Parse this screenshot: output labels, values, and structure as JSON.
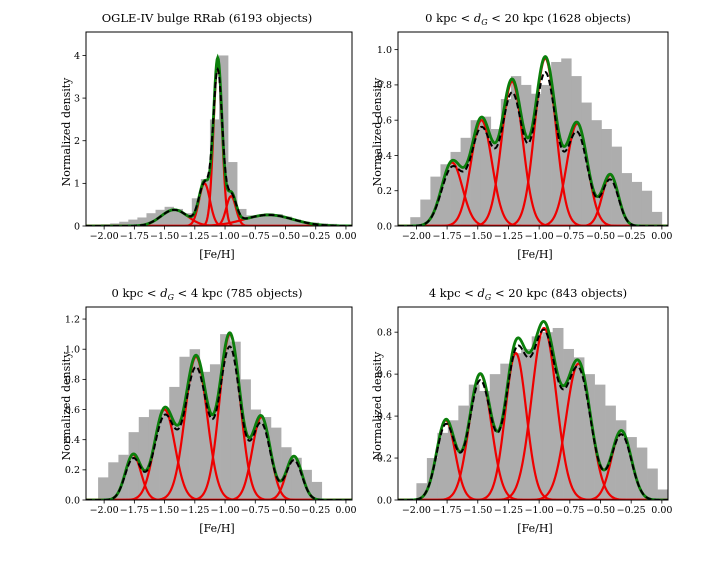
{
  "figure": {
    "x_axis_label": "[Fe/H]",
    "y_axis_label": "Normalized density"
  },
  "chart_data": [
    {
      "type": "histogram",
      "title": "OGLE-IV bulge RRab (6193 objects)",
      "xlabel": "[Fe/H]",
      "ylabel": "Normalized density",
      "xlim": [
        -2.15,
        0.05
      ],
      "ylim": [
        0,
        4.55
      ],
      "xticks": [
        -2.0,
        -1.75,
        -1.5,
        -1.25,
        -1.0,
        -0.75,
        -0.5,
        -0.25,
        0.0
      ],
      "yticks": [
        0,
        1,
        2,
        3,
        4
      ],
      "bin_edges": [
        -2.1,
        0.0
      ],
      "hist_values": [
        0.02,
        0.04,
        0.06,
        0.1,
        0.15,
        0.2,
        0.3,
        0.38,
        0.45,
        0.4,
        0.3,
        0.65,
        1.1,
        2.5,
        4.0,
        1.5,
        0.4,
        0.25,
        0.25,
        0.3,
        0.28,
        0.22,
        0.15,
        0.1,
        0.08,
        0.06,
        0.05,
        0.03
      ],
      "components": [
        {
          "mu": -1.42,
          "sigma": 0.11,
          "amp": 0.38
        },
        {
          "mu": -1.17,
          "sigma": 0.045,
          "amp": 1.0
        },
        {
          "mu": -1.06,
          "sigma": 0.035,
          "amp": 3.85
        },
        {
          "mu": -0.95,
          "sigma": 0.04,
          "amp": 0.7
        },
        {
          "mu": -0.64,
          "sigma": 0.2,
          "amp": 0.26
        }
      ],
      "kde_scale": 1.0
    },
    {
      "type": "histogram",
      "title": "0 kpc < d_G < 20 kpc (1628 objects)",
      "xlabel": "[Fe/H]",
      "ylabel": "Normalized density",
      "xlim": [
        -2.15,
        0.05
      ],
      "ylim": [
        0,
        1.1
      ],
      "xticks": [
        -2.0,
        -1.75,
        -1.5,
        -1.25,
        -1.0,
        -0.75,
        -0.5,
        -0.25,
        0.0
      ],
      "yticks": [
        0.0,
        0.2,
        0.4,
        0.6,
        0.8,
        1.0
      ],
      "bin_edges": [
        -2.05,
        0.0
      ],
      "hist_values": [
        0.05,
        0.15,
        0.28,
        0.35,
        0.42,
        0.5,
        0.6,
        0.62,
        0.55,
        0.72,
        0.85,
        0.8,
        0.75,
        0.8,
        0.93,
        0.95,
        0.85,
        0.7,
        0.6,
        0.55,
        0.45,
        0.3,
        0.25,
        0.2,
        0.08
      ],
      "components": [
        {
          "mu": -1.71,
          "sigma": 0.085,
          "amp": 0.36
        },
        {
          "mu": -1.47,
          "sigma": 0.085,
          "amp": 0.6
        },
        {
          "mu": -1.22,
          "sigma": 0.085,
          "amp": 0.82
        },
        {
          "mu": -0.95,
          "sigma": 0.085,
          "amp": 0.95
        },
        {
          "mu": -0.69,
          "sigma": 0.085,
          "amp": 0.58
        },
        {
          "mu": -0.42,
          "sigma": 0.065,
          "amp": 0.29
        }
      ],
      "kde_scale": 0.92
    },
    {
      "type": "histogram",
      "title": "0 kpc < d_G < 4 kpc (785 objects)",
      "xlabel": "[Fe/H]",
      "ylabel": "Normalized density",
      "xlim": [
        -2.15,
        0.05
      ],
      "ylim": [
        0,
        1.28
      ],
      "xticks": [
        -2.0,
        -1.75,
        -1.5,
        -1.25,
        -1.0,
        -0.75,
        -0.5,
        -0.25,
        0.0
      ],
      "yticks": [
        0.0,
        0.2,
        0.4,
        0.6,
        0.8,
        1.0,
        1.2
      ],
      "bin_edges": [
        -2.05,
        -0.2
      ],
      "hist_values": [
        0.15,
        0.25,
        0.3,
        0.45,
        0.55,
        0.6,
        0.6,
        0.75,
        0.95,
        1.0,
        0.85,
        0.9,
        1.1,
        1.05,
        0.8,
        0.6,
        0.55,
        0.48,
        0.35,
        0.28,
        0.2,
        0.12
      ],
      "components": [
        {
          "mu": -1.76,
          "sigma": 0.065,
          "amp": 0.3
        },
        {
          "mu": -1.5,
          "sigma": 0.085,
          "amp": 0.6
        },
        {
          "mu": -1.24,
          "sigma": 0.09,
          "amp": 0.95
        },
        {
          "mu": -0.96,
          "sigma": 0.085,
          "amp": 1.1
        },
        {
          "mu": -0.7,
          "sigma": 0.075,
          "amp": 0.55
        },
        {
          "mu": -0.43,
          "sigma": 0.065,
          "amp": 0.29
        }
      ],
      "kde_scale": 0.93
    },
    {
      "type": "histogram",
      "title": "4 kpc < d_G < 20 kpc (843 objects)",
      "xlabel": "[Fe/H]",
      "ylabel": "Normalized density",
      "xlim": [
        -2.15,
        0.05
      ],
      "ylim": [
        0,
        0.92
      ],
      "xticks": [
        -2.0,
        -1.75,
        -1.5,
        -1.25,
        -1.0,
        -0.75,
        -0.5,
        -0.25,
        0.0
      ],
      "yticks": [
        0.0,
        0.2,
        0.4,
        0.6,
        0.8
      ],
      "bin_edges": [
        -2.0,
        0.05
      ],
      "hist_values": [
        0.08,
        0.2,
        0.32,
        0.38,
        0.45,
        0.55,
        0.52,
        0.6,
        0.65,
        0.7,
        0.72,
        0.78,
        0.8,
        0.82,
        0.72,
        0.68,
        0.6,
        0.55,
        0.45,
        0.38,
        0.3,
        0.25,
        0.15,
        0.05
      ],
      "components": [
        {
          "mu": -1.76,
          "sigma": 0.075,
          "amp": 0.38
        },
        {
          "mu": -1.48,
          "sigma": 0.09,
          "amp": 0.6
        },
        {
          "mu": -1.19,
          "sigma": 0.085,
          "amp": 0.7
        },
        {
          "mu": -0.96,
          "sigma": 0.1,
          "amp": 0.82
        },
        {
          "mu": -0.68,
          "sigma": 0.1,
          "amp": 0.65
        },
        {
          "mu": -0.33,
          "sigma": 0.08,
          "amp": 0.33
        }
      ],
      "kde_scale": 0.96
    }
  ]
}
